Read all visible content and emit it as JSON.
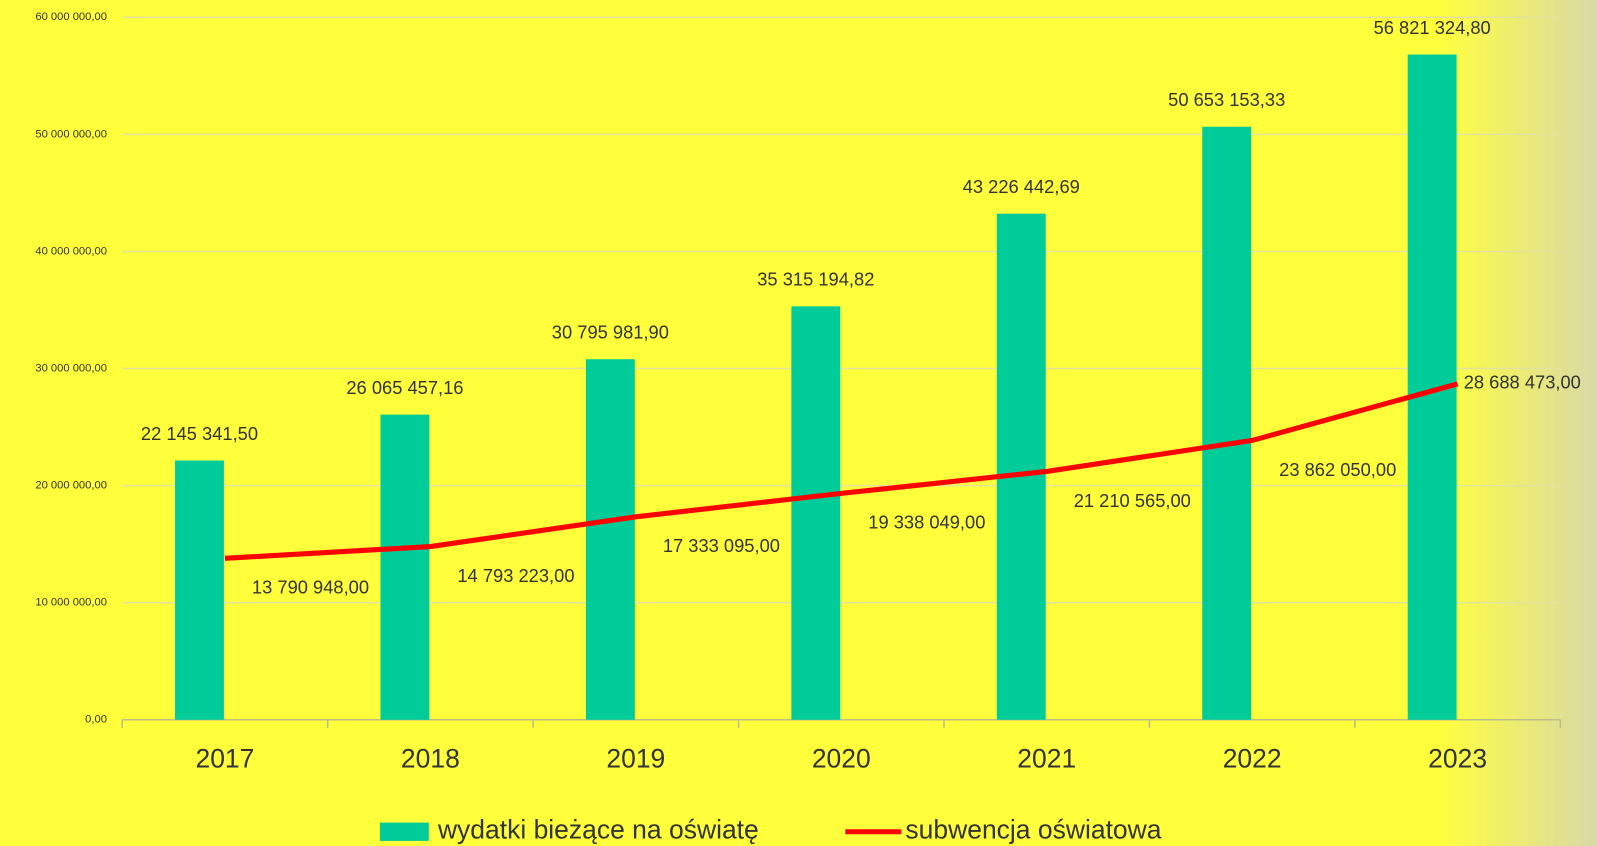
{
  "chart_data": {
    "type": "combo",
    "categories": [
      "2017",
      "2018",
      "2019",
      "2020",
      "2021",
      "2022",
      "2023"
    ],
    "series": [
      {
        "name": "wydatki bieżące na oświatę",
        "type": "bar",
        "color": "#00cc99",
        "values": [
          22145341.5,
          26065457.16,
          30795981.9,
          35315194.82,
          43226442.69,
          50653153.33,
          56821324.8
        ],
        "value_labels": [
          "22 145 341,50",
          "26 065 457,16",
          "30 795 981,90",
          "35 315 194,82",
          "43 226 442,69",
          "50 653 153,33",
          "56 821 324,80"
        ]
      },
      {
        "name": "subwencja oświatowa",
        "type": "line",
        "color": "#ff0000",
        "values": [
          13790948.0,
          14793223.0,
          17333095.0,
          19338049.0,
          21210565.0,
          23862050.0,
          28688473.0
        ],
        "value_labels": [
          "13 790 948,00",
          "14 793 223,00",
          "17 333 095,00",
          "19 338 049,00",
          "21 210 565,00",
          "23 862 050,00",
          "28 688 473,00"
        ]
      }
    ],
    "ylim": [
      0,
      60000000
    ],
    "yticks": [
      {
        "value": 0,
        "label": "0,00"
      },
      {
        "value": 10000000,
        "label": "10 000 000,00"
      },
      {
        "value": 20000000,
        "label": "20 000 000,00"
      },
      {
        "value": 30000000,
        "label": "30 000 000,00"
      },
      {
        "value": 40000000,
        "label": "40 000 000,00"
      },
      {
        "value": 50000000,
        "label": "50 000 000,00"
      },
      {
        "value": 60000000,
        "label": "60 000 000,00"
      }
    ],
    "grid": true,
    "legend": "bottom"
  }
}
